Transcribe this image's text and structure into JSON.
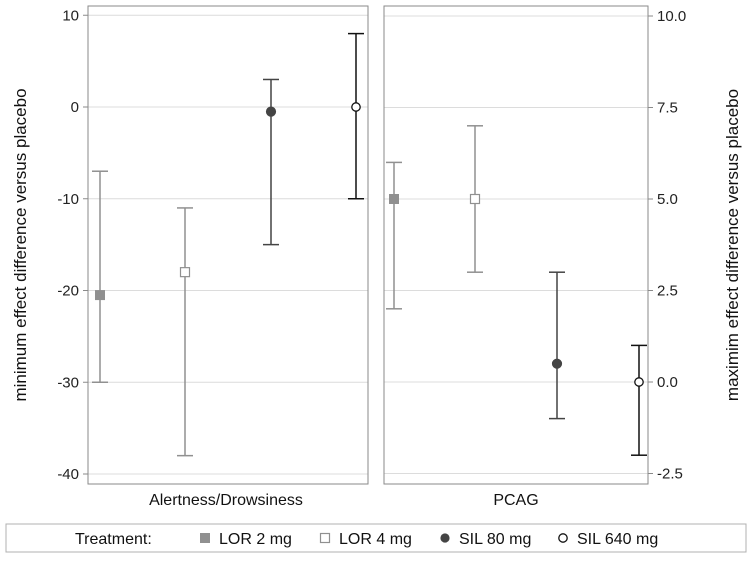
{
  "chart_data": {
    "type": "scatter",
    "subtype": "point-with-error-bars",
    "panels": [
      {
        "label": "Alertness/Drowsiness",
        "axis": "left",
        "ylabel": "minimum effect difference versus placebo",
        "ylim": [
          -41,
          10
        ],
        "yticks": [
          10,
          0,
          -10,
          -20,
          -30,
          -40
        ],
        "points": [
          {
            "series": "LOR 2 mg",
            "value": -20.5,
            "low": -30,
            "high": -7
          },
          {
            "series": "LOR 4 mg",
            "value": -18,
            "low": -38,
            "high": -11
          },
          {
            "series": "SIL 80 mg",
            "value": -0.5,
            "low": -15,
            "high": 3
          },
          {
            "series": "SIL 640 mg",
            "value": 0,
            "low": -10,
            "high": 8
          }
        ]
      },
      {
        "label": "PCAG",
        "axis": "right",
        "ylabel": "maximim effect difference versus placebo",
        "ylim": [
          -2.75,
          10
        ],
        "yticks": [
          "10.0",
          "7.5",
          "5.0",
          "2.5",
          "0.0",
          "-2.5"
        ],
        "points": [
          {
            "series": "LOR 2 mg",
            "value": 5.0,
            "low": 2.0,
            "high": 6.0
          },
          {
            "series": "LOR 4 mg",
            "value": 5.0,
            "low": 3.0,
            "high": 7.0
          },
          {
            "series": "SIL 80 mg",
            "value": 0.5,
            "low": -1.0,
            "high": 3.0
          },
          {
            "series": "SIL 640 mg",
            "value": 0.0,
            "low": -2.0,
            "high": 1.0
          }
        ]
      }
    ],
    "legend": {
      "title": "Treatment:",
      "position": "bottom",
      "entries": [
        {
          "name": "LOR 2 mg",
          "marker": "filled-square",
          "color": "#909090"
        },
        {
          "name": "LOR 4 mg",
          "marker": "open-square",
          "color": "#909090"
        },
        {
          "name": "SIL 80 mg",
          "marker": "filled-circle",
          "color": "#444444"
        },
        {
          "name": "SIL 640 mg",
          "marker": "open-circle",
          "color": "#111111"
        }
      ]
    }
  },
  "colors": {
    "grid": "#dcdcdc",
    "frame": "#8a8a8a",
    "lor": "#909090",
    "sil80": "#444444",
    "sil640": "#111111"
  }
}
